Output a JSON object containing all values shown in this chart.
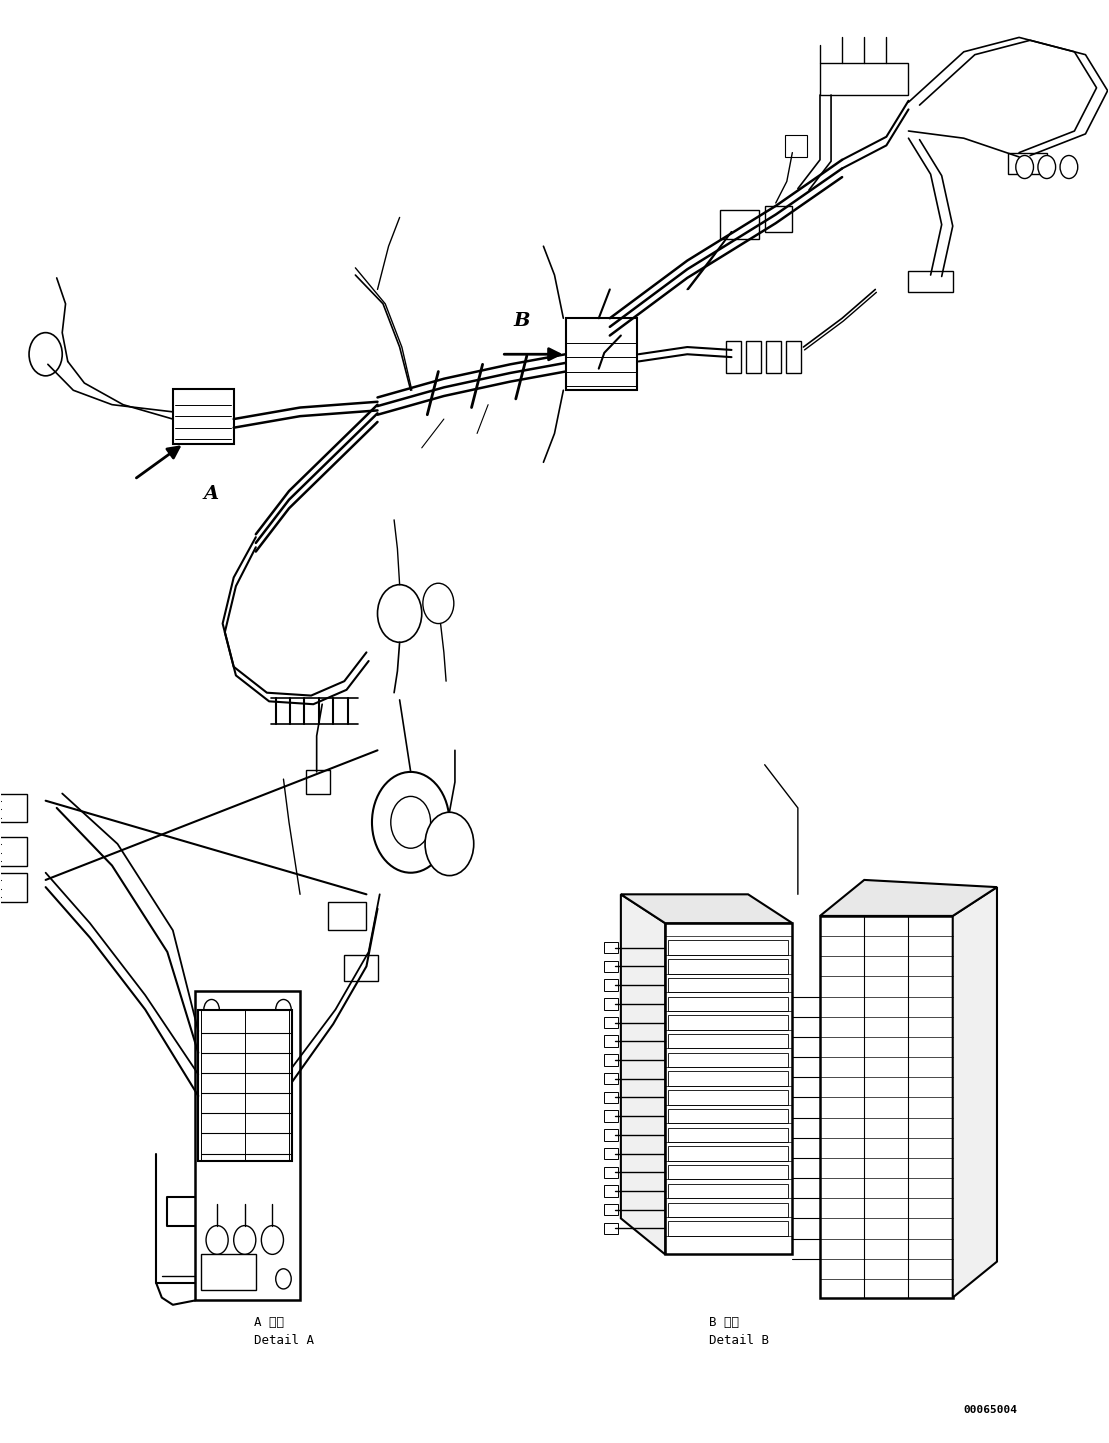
{
  "title": "",
  "background_color": "#ffffff",
  "fig_width": 11.09,
  "fig_height": 14.43,
  "dpi": 100,
  "detail_a_label1": "A 詳細",
  "detail_a_label2": "Detail A",
  "detail_b_label1": "B 詳細",
  "detail_b_label2": "Detail B",
  "doc_number": "00065004",
  "label_A_text": "A",
  "label_B_text": "B",
  "image_color": "#000000",
  "line_width": 1.0
}
